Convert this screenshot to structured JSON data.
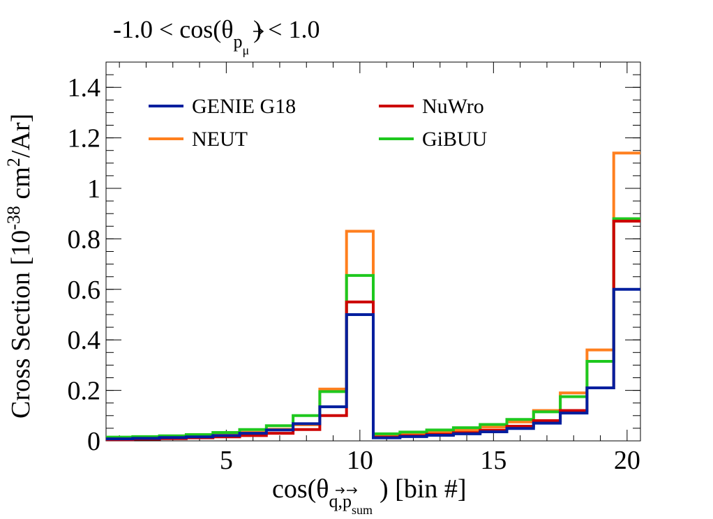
{
  "title": {
    "prefix": "-1.0 < cos(θ",
    "sub_vec": "p",
    "sub_sub": "μ",
    "suffix": ") < 1.0"
  },
  "xlabel": {
    "prefix": "cos(θ",
    "sub": "q,p",
    "sub_sub": "sum",
    "suffix": ") [bin #]"
  },
  "ylabel": {
    "prefix": "Cross Section [10",
    "exp": "-38",
    "mid": " cm",
    "exp2": "2",
    "suffix": "/Ar]"
  },
  "chart_data": {
    "type": "line",
    "style": "step-histogram",
    "x_bin_edges": [
      0.5,
      1.5,
      2.5,
      3.5,
      4.5,
      5.5,
      6.5,
      7.5,
      8.5,
      9.5,
      10.5,
      11.5,
      12.5,
      13.5,
      14.5,
      15.5,
      16.5,
      17.5,
      18.5,
      19.5,
      20.5
    ],
    "xlim": [
      0.5,
      20.5
    ],
    "ylim": [
      0,
      1.5
    ],
    "x_ticks": [
      5,
      10,
      15,
      20
    ],
    "x_tick_labels": [
      "5",
      "10",
      "15",
      "20"
    ],
    "y_ticks": [
      0,
      0.2,
      0.4,
      0.6,
      0.8,
      1,
      1.2,
      1.4
    ],
    "y_tick_labels": [
      "0",
      "0.2",
      "0.4",
      "0.6",
      "0.8",
      "1",
      "1.2",
      "1.4"
    ],
    "grid": false,
    "legend_position": "top",
    "series": [
      {
        "name": "NEUT",
        "color": "#ff7f1e",
        "values": [
          0.012,
          0.014,
          0.016,
          0.02,
          0.026,
          0.034,
          0.046,
          0.064,
          0.205,
          0.83,
          0.022,
          0.028,
          0.034,
          0.042,
          0.055,
          0.075,
          0.12,
          0.19,
          0.36,
          1.14
        ]
      },
      {
        "name": "GiBUU",
        "color": "#1ec81e",
        "values": [
          0.015,
          0.017,
          0.02,
          0.025,
          0.033,
          0.045,
          0.06,
          0.1,
          0.195,
          0.655,
          0.028,
          0.035,
          0.043,
          0.052,
          0.065,
          0.085,
          0.115,
          0.175,
          0.315,
          0.88
        ]
      },
      {
        "name": "NuWro",
        "color": "#cc0000",
        "values": [
          0.005,
          0.007,
          0.009,
          0.012,
          0.016,
          0.021,
          0.03,
          0.045,
          0.1,
          0.55,
          0.015,
          0.02,
          0.026,
          0.032,
          0.042,
          0.058,
          0.08,
          0.12,
          0.21,
          0.87
        ]
      },
      {
        "name": "GENIE G18",
        "color": "#001e9e",
        "values": [
          0.008,
          0.01,
          0.013,
          0.016,
          0.021,
          0.03,
          0.043,
          0.068,
          0.135,
          0.5,
          0.012,
          0.017,
          0.022,
          0.028,
          0.036,
          0.049,
          0.07,
          0.11,
          0.21,
          0.6
        ]
      }
    ],
    "legend_order": [
      "GENIE G18",
      "NuWro",
      "NEUT",
      "GiBUU"
    ]
  }
}
